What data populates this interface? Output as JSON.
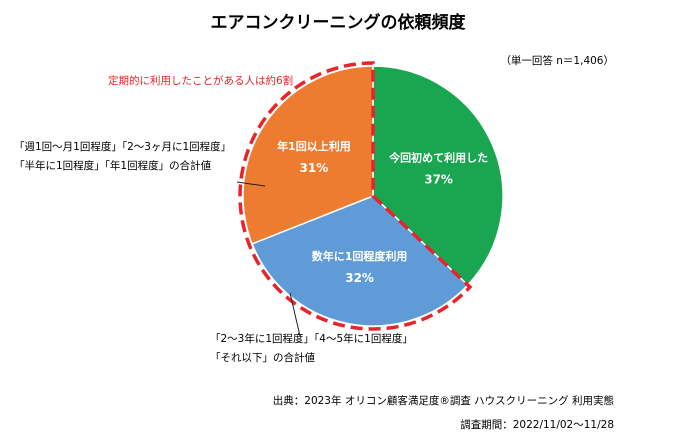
{
  "chart_data": {
    "type": "pie",
    "title": "エアコンクリーニングの依頼頻度",
    "sample_note": "（単一回答 n＝1,406）",
    "slices": [
      {
        "label": "今回初めて利用した",
        "value": 37,
        "value_label": "37%",
        "color": "#1aa550"
      },
      {
        "label": "数年に1回程度利用",
        "value": 32,
        "value_label": "32%",
        "color": "#5f9bd6"
      },
      {
        "label": "年1回以上利用",
        "value": 31,
        "value_label": "31%",
        "color": "#ee7c30"
      }
    ],
    "highlight": {
      "text": "定期的に利用したことがある人は約6割",
      "color": "#e8242a"
    },
    "annotations": {
      "yearly": [
        "「週1回～月1回程度」「2～3ヶ月に1回程度」",
        "「半年に1回程度」「年1回程度」の合計値"
      ],
      "multi_year": [
        "「2～3年に1回程度」「4～5年に1回程度」",
        "「それ以下」の合計値"
      ]
    },
    "source": "出典：2023年 オリコン顧客満足度®調査 ハウスクリーニング 利用実態",
    "period": "調査期間：2022/11/02～11/28"
  }
}
